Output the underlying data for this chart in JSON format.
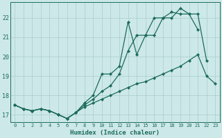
{
  "xlabel": "Humidex (Indice chaleur)",
  "background_color": "#cde8e8",
  "grid_color": "#a8cccc",
  "line_color": "#1a6b5a",
  "xlim": [
    -0.5,
    23.5
  ],
  "ylim": [
    16.6,
    22.8
  ],
  "xticks": [
    0,
    1,
    2,
    3,
    4,
    5,
    6,
    7,
    8,
    9,
    10,
    11,
    12,
    13,
    14,
    15,
    16,
    17,
    18,
    19,
    20,
    21,
    22,
    23
  ],
  "yticks": [
    17,
    18,
    19,
    20,
    21,
    22
  ],
  "series": [
    {
      "x": [
        0,
        1,
        2,
        3,
        4,
        5,
        6,
        7,
        8,
        9,
        10,
        11,
        12,
        13,
        14,
        15,
        16,
        17,
        18,
        19,
        20,
        21
      ],
      "y": [
        17.5,
        17.3,
        17.2,
        17.3,
        17.2,
        17.0,
        16.8,
        17.1,
        17.6,
        18.0,
        19.1,
        19.1,
        19.5,
        21.8,
        20.1,
        21.1,
        21.1,
        22.0,
        22.0,
        22.5,
        22.2,
        21.4
      ]
    },
    {
      "x": [
        0,
        1,
        2,
        3,
        4,
        5,
        6,
        7,
        8,
        9,
        10,
        11,
        12,
        13,
        14,
        15,
        16,
        17,
        18,
        19,
        20,
        21,
        22
      ],
      "y": [
        17.5,
        17.3,
        17.2,
        17.3,
        17.2,
        17.0,
        16.8,
        17.1,
        17.5,
        17.8,
        18.2,
        18.5,
        19.1,
        20.3,
        21.1,
        21.1,
        22.0,
        22.0,
        22.3,
        22.2,
        22.2,
        22.2,
        19.8
      ]
    },
    {
      "x": [
        0,
        1,
        2,
        3,
        4,
        5,
        6,
        7,
        8,
        9,
        10,
        11,
        12,
        13,
        14,
        15,
        16,
        17,
        18,
        19,
        20,
        21,
        22,
        23
      ],
      "y": [
        17.5,
        17.3,
        17.2,
        17.3,
        17.2,
        17.0,
        16.8,
        17.1,
        17.4,
        17.6,
        17.8,
        18.0,
        18.2,
        18.4,
        18.6,
        18.7,
        18.9,
        19.1,
        19.3,
        19.5,
        19.8,
        20.1,
        19.0,
        18.6
      ]
    }
  ]
}
